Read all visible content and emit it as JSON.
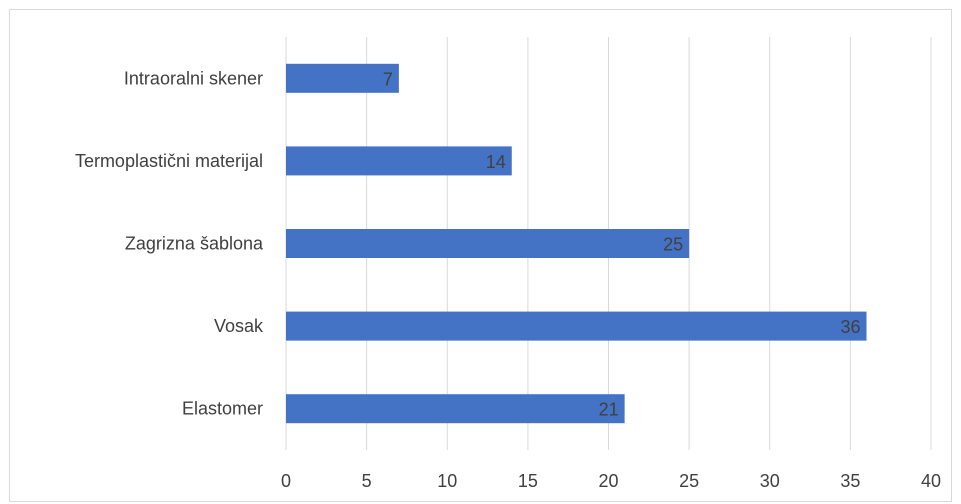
{
  "chart_data": {
    "type": "bar",
    "orientation": "horizontal",
    "categories": [
      "Elastomer",
      "Vosak",
      "Zagrizna šablona",
      "Termoplastični materijal",
      "Intraoralni skener"
    ],
    "values": [
      21,
      36,
      25,
      14,
      7
    ],
    "xlim": [
      0,
      40
    ],
    "xticks": [
      0,
      5,
      10,
      15,
      20,
      25,
      30,
      35,
      40
    ],
    "title": "",
    "xlabel": "",
    "ylabel": "",
    "grid": "vertical",
    "legend": "none",
    "data_labels": "inside-end",
    "colors": {
      "bar": "#4472c4",
      "grid": "#d9d9d9",
      "text": "#404040",
      "frame": "#d9d9d9"
    }
  }
}
